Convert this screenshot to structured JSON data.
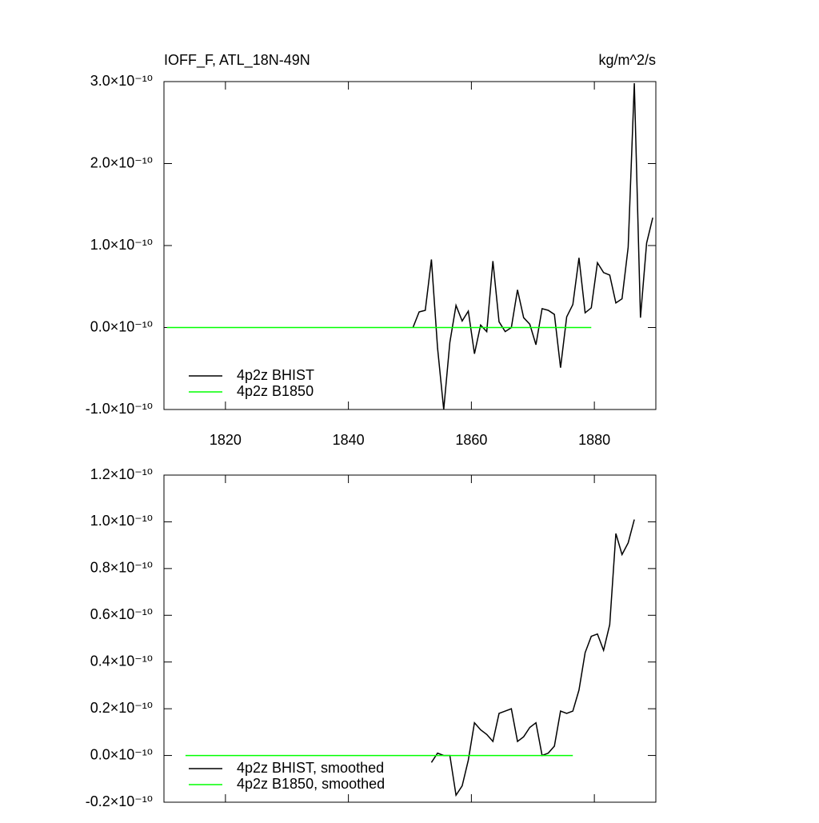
{
  "chart_data": [
    {
      "type": "line",
      "title": "IOFF_F, ATL_18N-49N",
      "units": "kg/m^2/s",
      "xlim": [
        1810,
        1890
      ],
      "xticks": [
        1820,
        1840,
        1860,
        1880
      ],
      "ylim": [
        -1e-10,
        3e-10
      ],
      "yticks": [
        {
          "value": -1e-10,
          "label": "-1.0×10⁻¹⁰"
        },
        {
          "value": 0,
          "label": "0.0×10⁻¹⁰"
        },
        {
          "value": 1e-10,
          "label": "1.0×10⁻¹⁰"
        },
        {
          "value": 2e-10,
          "label": "2.0×10⁻¹⁰"
        },
        {
          "value": 3e-10,
          "label": "3.0×10⁻¹⁰"
        }
      ],
      "legend": "lower left",
      "series": [
        {
          "name": "4p2z BHIST",
          "color": "#000000",
          "x": [
            1850.5,
            1851.5,
            1852.5,
            1853.5,
            1854.5,
            1855.5,
            1856.5,
            1857.5,
            1858.5,
            1859.5,
            1860.5,
            1861.5,
            1862.5,
            1863.5,
            1864.5,
            1865.5,
            1866.5,
            1867.5,
            1868.5,
            1869.5,
            1870.5,
            1871.5,
            1872.5,
            1873.5,
            1874.5,
            1875.5,
            1876.5,
            1877.5,
            1878.5,
            1879.5,
            1880.5,
            1881.5,
            1882.5,
            1883.5,
            1884.5,
            1885.5,
            1886.5,
            1887.5,
            1888.5,
            1889.5
          ],
          "values": [
            0,
            1.9e-11,
            2.1e-11,
            8.3e-11,
            -2.5e-11,
            -1e-10,
            -1.8e-11,
            2.7e-11,
            8e-12,
            2e-11,
            -3.2e-11,
            3e-12,
            -5e-12,
            8.1e-11,
            7e-12,
            -5e-12,
            0,
            4.6e-11,
            1.2e-11,
            4e-12,
            -2.1e-11,
            2.3e-11,
            2.1e-11,
            1.6e-11,
            -4.9e-11,
            1.3e-11,
            2.8e-11,
            8.5e-11,
            1.8e-11,
            2.4e-11,
            7.9e-11,
            6.7e-11,
            6.4e-11,
            3e-11,
            3.5e-11,
            9.8e-11,
            2.98e-10,
            1.2e-11,
            1.03e-10,
            1.34e-10
          ]
        },
        {
          "name": "4p2z B1850",
          "color": "#00ff00",
          "x": [
            1810.5,
            1879.5
          ],
          "values": [
            0,
            0
          ]
        }
      ]
    },
    {
      "type": "line",
      "xlim": [
        1810,
        1890
      ],
      "xticks": [
        1820,
        1840,
        1860,
        1880
      ],
      "ylim": [
        -2e-11,
        1.2e-10
      ],
      "yticks": [
        {
          "value": -2e-11,
          "label": "-0.2×10⁻¹⁰"
        },
        {
          "value": 0,
          "label": "0.0×10⁻¹⁰"
        },
        {
          "value": 2e-11,
          "label": "0.2×10⁻¹⁰"
        },
        {
          "value": 4e-11,
          "label": "0.4×10⁻¹⁰"
        },
        {
          "value": 6e-11,
          "label": "0.6×10⁻¹⁰"
        },
        {
          "value": 8e-11,
          "label": "0.8×10⁻¹⁰"
        },
        {
          "value": 1e-10,
          "label": "1.0×10⁻¹⁰"
        },
        {
          "value": 1.2e-10,
          "label": "1.2×10⁻¹⁰"
        }
      ],
      "legend": "lower left",
      "series": [
        {
          "name": "4p2z BHIST, smoothed",
          "color": "#000000",
          "x": [
            1853.5,
            1854.5,
            1855.5,
            1856.5,
            1857.5,
            1858.5,
            1859.5,
            1860.5,
            1861.5,
            1862.5,
            1863.5,
            1864.5,
            1865.5,
            1866.5,
            1867.5,
            1868.5,
            1869.5,
            1870.5,
            1871.5,
            1872.5,
            1873.5,
            1874.5,
            1875.5,
            1876.5,
            1877.5,
            1878.5,
            1879.5,
            1880.5,
            1881.5,
            1882.5,
            1883.5,
            1884.5,
            1885.5,
            1886.5
          ],
          "values": [
            -3e-12,
            1e-12,
            0,
            0,
            -1.7e-11,
            -1.3e-11,
            -2e-12,
            1.4e-11,
            1.1e-11,
            9e-12,
            6e-12,
            1.8e-11,
            1.9e-11,
            2e-11,
            6e-12,
            8e-12,
            1.2e-11,
            1.4e-11,
            0,
            1e-12,
            4e-12,
            1.9e-11,
            1.8e-11,
            1.9e-11,
            2.8e-11,
            4.4e-11,
            5.1e-11,
            5.2e-11,
            4.5e-11,
            5.6e-11,
            9.5e-11,
            8.6e-11,
            9.1e-11,
            1.01e-10
          ]
        },
        {
          "name": "4p2z B1850, smoothed",
          "color": "#00ff00",
          "x": [
            1813.5,
            1876.5
          ],
          "values": [
            0,
            0
          ]
        }
      ]
    }
  ]
}
